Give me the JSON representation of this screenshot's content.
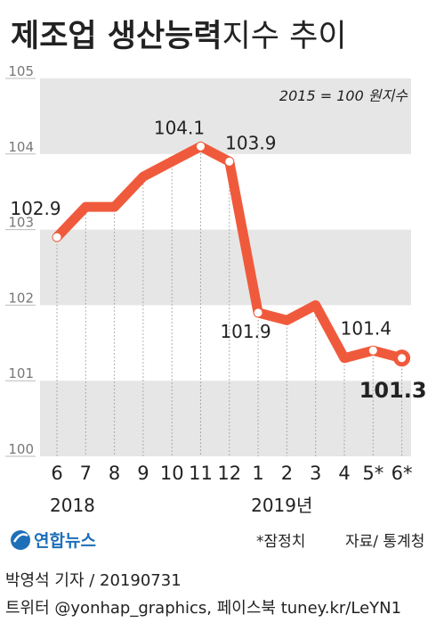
{
  "title": {
    "bold": "제조업 생산능력",
    "light": "지수 추이"
  },
  "chart_data": {
    "type": "line",
    "annotation": "2015 = 100 원지수",
    "x": [
      "6",
      "7",
      "8",
      "9",
      "10",
      "11",
      "12",
      "1",
      "2",
      "3",
      "4",
      "5*",
      "6*"
    ],
    "year_labels": [
      {
        "text": "2018",
        "index": 0
      },
      {
        "text": "2019년",
        "index": 7
      }
    ],
    "values": [
      102.9,
      103.3,
      103.3,
      103.7,
      103.9,
      104.1,
      103.9,
      101.9,
      101.8,
      102.0,
      101.3,
      101.4,
      101.3
    ],
    "data_labels": [
      {
        "index": 0,
        "text": "102.9"
      },
      {
        "index": 5,
        "text": "104.1"
      },
      {
        "index": 6,
        "text": "103.9"
      },
      {
        "index": 7,
        "text": "101.9"
      },
      {
        "index": 11,
        "text": "101.4"
      },
      {
        "index": 12,
        "text": "101.3",
        "emphasis": true
      }
    ],
    "marked_points": [
      0,
      5,
      6,
      7,
      11,
      12
    ],
    "ylim": [
      100,
      105
    ],
    "yticks": [
      100,
      101,
      102,
      103,
      104,
      105
    ],
    "line_color": "#f05a3c",
    "band_color": "#e6e6e6",
    "grid": "vertical-dotted"
  },
  "logo": {
    "text": "연합뉴스"
  },
  "footnote": "*잠정치",
  "source": "자료/ 통계청",
  "credit": "박영석 기자 / 20190731",
  "social": "트위터 @yonhap_graphics, 페이스북 tuney.kr/LeYN1"
}
